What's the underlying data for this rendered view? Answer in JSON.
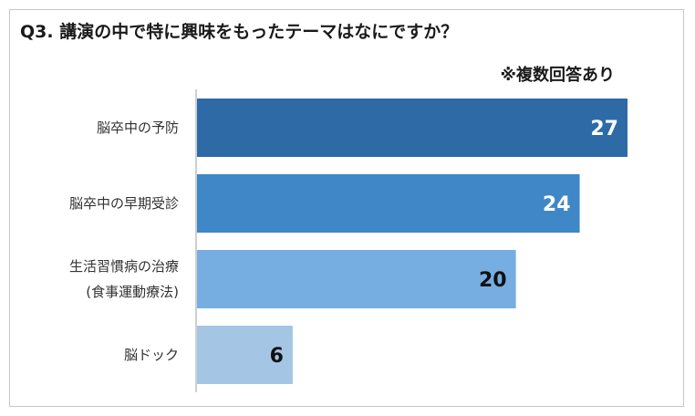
{
  "title": "Q3. 講演の中で特に興味をもったテーマはなにですか？",
  "note": "※複数回答あり",
  "chart_data": {
    "type": "bar",
    "orientation": "horizontal",
    "categories": [
      [
        "脳卒中の予防"
      ],
      [
        "脳卒中の早期受診"
      ],
      [
        "生活習慣病の治療",
        "(食事運動療法)"
      ],
      [
        "脳ドック"
      ]
    ],
    "values": [
      27,
      24,
      20,
      6
    ],
    "colors": [
      "#2e6aa6",
      "#3f87c6",
      "#77aee2",
      "#a4c6e4"
    ],
    "label_colors": [
      "#ffffff",
      "#ffffff",
      "#111111",
      "#111111"
    ],
    "xlim": [
      0,
      27
    ],
    "grid": false,
    "legend": "none"
  }
}
